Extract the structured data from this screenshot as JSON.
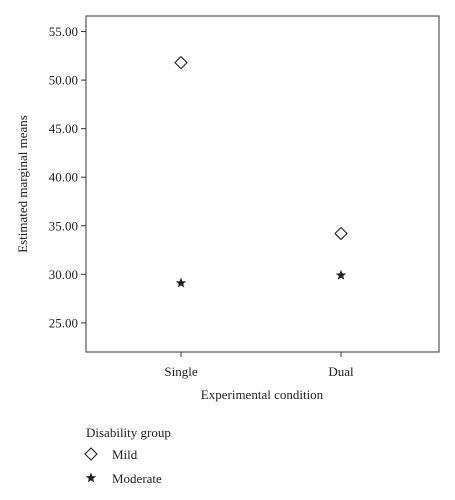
{
  "chart_data": {
    "type": "scatter",
    "title": "",
    "xlabel": "Experimental condition",
    "ylabel": "Estimated marginal means",
    "categories": [
      "Single",
      "Dual"
    ],
    "y_ticks": [
      "25.00",
      "30.00",
      "35.00",
      "40.00",
      "45.00",
      "50.00",
      "55.00"
    ],
    "ylim": [
      22.0,
      56.6
    ],
    "grid": false,
    "legend": {
      "title": "Disability group",
      "placement": "bottom-left",
      "entries": [
        {
          "name": "Mild",
          "marker": "diamond"
        },
        {
          "name": "Moderate",
          "marker": "star"
        }
      ]
    },
    "series": [
      {
        "name": "Mild",
        "marker": "diamond",
        "values": [
          51.8,
          34.2
        ]
      },
      {
        "name": "Moderate",
        "marker": "star",
        "values": [
          29.1,
          29.9
        ]
      }
    ]
  }
}
